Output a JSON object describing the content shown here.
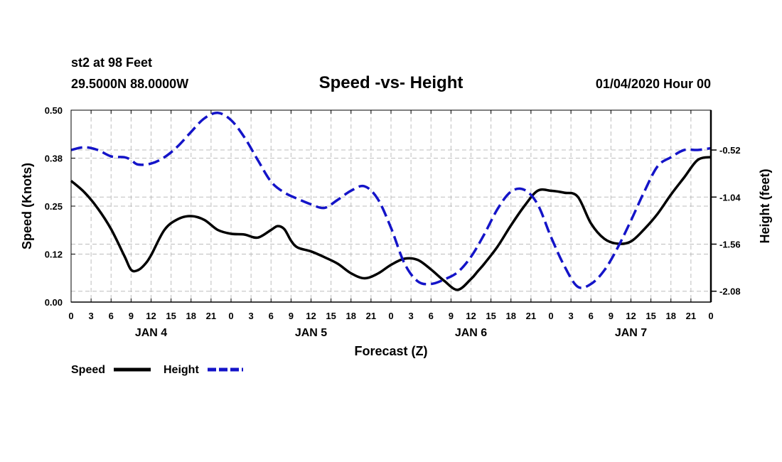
{
  "header": {
    "station": "st2 at 98 Feet",
    "location": "29.5000N 88.0000W",
    "title": "Speed -vs- Height",
    "datetime": "01/04/2020 Hour 00"
  },
  "legend": {
    "speed_label": "Speed",
    "height_label": "Height"
  },
  "colors": {
    "speed": "#000000",
    "height": "#1414c8",
    "grid": "#bdbdbd"
  },
  "chart_data": {
    "type": "line",
    "title": "Speed -vs- Height",
    "xlabel": "Forecast (Z)",
    "ylabel": "Speed (Knots)",
    "y2label": "Height (feet)",
    "xlim": [
      0,
      96
    ],
    "ylim": [
      0,
      0.5
    ],
    "y2lim": [
      -2.2,
      -0.08
    ],
    "grid": true,
    "legend_position": "bottom-left",
    "x_ticks": [
      0,
      3,
      6,
      9,
      12,
      15,
      18,
      21,
      24,
      27,
      30,
      33,
      36,
      39,
      42,
      45,
      48,
      51,
      54,
      57,
      60,
      63,
      66,
      69,
      72,
      75,
      78,
      81,
      84,
      87,
      90,
      93,
      96
    ],
    "x_tick_labels": [
      "0",
      "3",
      "6",
      "9",
      "12",
      "15",
      "18",
      "21",
      "0",
      "3",
      "6",
      "9",
      "12",
      "15",
      "18",
      "21",
      "0",
      "3",
      "6",
      "9",
      "12",
      "15",
      "18",
      "21",
      "0",
      "3",
      "6",
      "9",
      "12",
      "15",
      "18",
      "21",
      "0"
    ],
    "day_labels": [
      {
        "x": 12,
        "label": "JAN 4"
      },
      {
        "x": 36,
        "label": "JAN 5"
      },
      {
        "x": 60,
        "label": "JAN 6"
      },
      {
        "x": 84,
        "label": "JAN 7"
      }
    ],
    "y_ticks": [
      0,
      0.125,
      0.25,
      0.375,
      0.5
    ],
    "y_tick_labels": [
      "0.00",
      "0.12",
      "0.25",
      "0.38",
      "0.50"
    ],
    "y2_ticks": [
      -2.08,
      -1.56,
      -1.04,
      -0.52
    ],
    "y2_tick_labels": [
      "-2.08",
      "-1.56",
      "-1.04",
      "-0.52"
    ],
    "series": [
      {
        "name": "Speed",
        "axis": "left",
        "style": "solid",
        "x": [
          0,
          2,
          4,
          6,
          8,
          9,
          10,
          11,
          12,
          14,
          16,
          18,
          20,
          22,
          24,
          26,
          28,
          30,
          31,
          32,
          33,
          34,
          36,
          38,
          40,
          42,
          44,
          46,
          48,
          50,
          52,
          54,
          56,
          58,
          60,
          61,
          62,
          64,
          66,
          68,
          70,
          72,
          74,
          76,
          78,
          80,
          82,
          84,
          86,
          88,
          90,
          92,
          94,
          96
        ],
        "values": [
          0.316,
          0.286,
          0.244,
          0.19,
          0.12,
          0.084,
          0.083,
          0.097,
          0.122,
          0.188,
          0.216,
          0.224,
          0.214,
          0.188,
          0.178,
          0.176,
          0.168,
          0.188,
          0.198,
          0.19,
          0.16,
          0.142,
          0.132,
          0.117,
          0.1,
          0.075,
          0.062,
          0.074,
          0.097,
          0.113,
          0.11,
          0.085,
          0.055,
          0.032,
          0.06,
          0.08,
          0.1,
          0.145,
          0.2,
          0.25,
          0.29,
          0.29,
          0.285,
          0.275,
          0.205,
          0.165,
          0.152,
          0.158,
          0.19,
          0.23,
          0.28,
          0.325,
          0.37,
          0.378
        ]
      },
      {
        "name": "Height",
        "axis": "right",
        "style": "dashed",
        "x": [
          0,
          2,
          4,
          6,
          8,
          9,
          10,
          12,
          14,
          16,
          18,
          20,
          22,
          24,
          26,
          28,
          30,
          32,
          34,
          36,
          38,
          40,
          42,
          44,
          46,
          48,
          50,
          52,
          54,
          56,
          58,
          60,
          62,
          64,
          66,
          68,
          70,
          72,
          74,
          76,
          78,
          80,
          82,
          84,
          86,
          88,
          90,
          92,
          94,
          96
        ],
        "values": [
          -0.52,
          -0.49,
          -0.52,
          -0.59,
          -0.6,
          -0.63,
          -0.68,
          -0.67,
          -0.6,
          -0.48,
          -0.32,
          -0.17,
          -0.11,
          -0.19,
          -0.38,
          -0.63,
          -0.87,
          -0.99,
          -1.06,
          -1.12,
          -1.16,
          -1.07,
          -0.97,
          -0.92,
          -1.06,
          -1.38,
          -1.77,
          -1.97,
          -2.0,
          -1.95,
          -1.87,
          -1.7,
          -1.45,
          -1.17,
          -0.98,
          -0.96,
          -1.12,
          -1.48,
          -1.8,
          -2.03,
          -2.0,
          -1.85,
          -1.6,
          -1.3,
          -0.98,
          -0.7,
          -0.6,
          -0.52,
          -0.52,
          -0.5
        ]
      }
    ]
  }
}
